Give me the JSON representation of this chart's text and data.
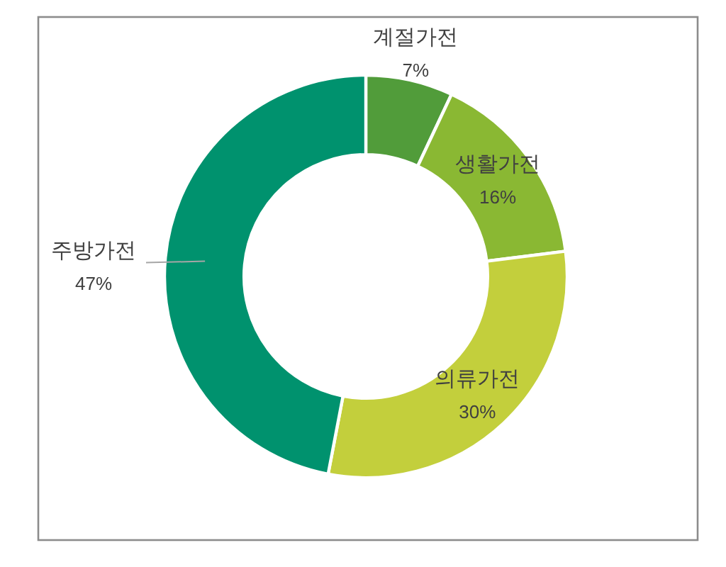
{
  "chart_data": {
    "type": "donut",
    "categories": [
      "계절가전",
      "생활가전",
      "의류가전",
      "주방가전"
    ],
    "values": [
      7,
      16,
      30,
      47
    ],
    "colors": [
      "#519c3a",
      "#8ab833",
      "#c3cf3c",
      "#00926e"
    ],
    "value_labels": [
      "7%",
      "16%",
      "30%",
      "47%"
    ]
  }
}
